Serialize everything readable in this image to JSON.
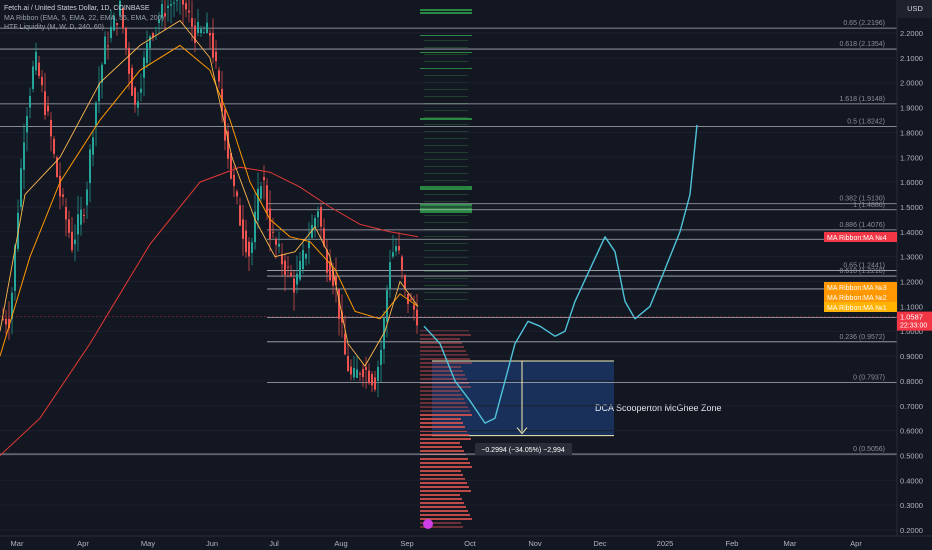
{
  "legend": {
    "symbol": "Fetch.ai / United States Dollar, 1D, COINBASE",
    "indicator1": "MA Ribbon (EMA, 5, EMA, 22, EMA, 55, EMA, 200)",
    "indicator2": "HTF Liquidity (M, W, D, 240, 60)"
  },
  "currency": "USD",
  "price_axis": {
    "ticks": [
      "2.2000",
      "2.1000",
      "2.0000",
      "1.9000",
      "1.8000",
      "1.7000",
      "1.6000",
      "1.5000",
      "1.4000",
      "1.3000",
      "1.2000",
      "1.1000",
      "1.0000",
      "0.9000",
      "0.8000",
      "0.7000",
      "0.6000",
      "0.5000",
      "0.4000",
      "0.3000",
      "0.2000"
    ],
    "last_price": "1.0587",
    "countdown": "22:33:00",
    "last_price_color": "#f23645"
  },
  "time_axis": {
    "labels": [
      "Mar",
      "Apr",
      "May",
      "Jun",
      "Jul",
      "Aug",
      "Sep",
      "Oct",
      "Nov",
      "Dec",
      "2025",
      "Feb",
      "Mar",
      "Apr"
    ]
  },
  "fib_levels": [
    {
      "label": "0.65 (2.2196)",
      "price": 2.2196
    },
    {
      "label": "0.618 (2.1354)",
      "price": 2.1354
    },
    {
      "label": "1.618 (1.9148)",
      "price": 1.9148
    },
    {
      "label": "0.5 (1.8242)",
      "price": 1.8242
    },
    {
      "label": "0.382 (1.5130)",
      "price": 1.513
    },
    {
      "label": "1 (1.4886)",
      "price": 1.4886
    },
    {
      "label": "0.886 (1.4076)",
      "price": 1.4076
    },
    {
      "label": "0.65 (1.2441)",
      "price": 1.2441
    },
    {
      "label": "0.618 (1.2218)",
      "price": 1.2218
    },
    {
      "label": "0.236 (0.9572)",
      "price": 0.9572
    },
    {
      "label": "0 (0.7937)",
      "price": 0.7937
    },
    {
      "label": "0 (0.5056)",
      "price": 0.5056
    }
  ],
  "ma_tags": [
    {
      "label": "MA Ribbon:MA №4",
      "color": "#f23645"
    },
    {
      "label": "MA Ribbon:MA №3",
      "color": "#ff9800"
    },
    {
      "label": "MA Ribbon:MA №2",
      "color": "#ff9800"
    },
    {
      "label": "MA Ribbon:MA №1",
      "color": "#ffb300"
    }
  ],
  "zone": {
    "label": "DCA Scooperton McGhee Zone",
    "top_price": 0.88,
    "bottom_price": 0.58,
    "color": "#1c3a6e"
  },
  "measure": {
    "label": "−0.2994 (−34.05%) −2,994"
  },
  "colors": {
    "background": "#131722",
    "up": "#26a69a",
    "down": "#ef5350",
    "projection": "#4fc3d9",
    "ma200": "#e53935",
    "ma_fast": "#ff9800"
  }
}
